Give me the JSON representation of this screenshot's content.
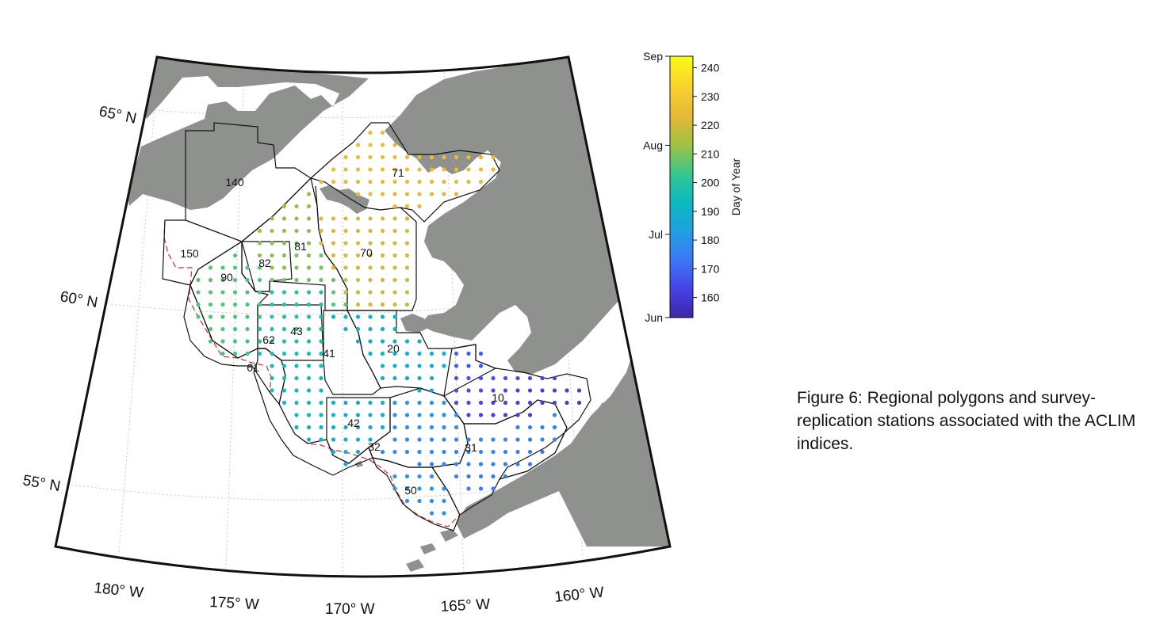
{
  "figure": {
    "caption": "Figure 6: Regional polygons and survey-replication stations associated with the ACLIM indices."
  },
  "map": {
    "lat_labels": [
      "65° N",
      "60° N",
      "55° N"
    ],
    "lon_labels": [
      "180° W",
      "175° W",
      "170° W",
      "165° W",
      "160° W"
    ],
    "regions": [
      {
        "id": "140",
        "label": "140"
      },
      {
        "id": "71",
        "label": "71"
      },
      {
        "id": "70",
        "label": "70"
      },
      {
        "id": "81",
        "label": "81"
      },
      {
        "id": "82",
        "label": "82"
      },
      {
        "id": "150",
        "label": "150"
      },
      {
        "id": "90",
        "label": "90"
      },
      {
        "id": "43",
        "label": "43"
      },
      {
        "id": "62",
        "label": "62"
      },
      {
        "id": "41",
        "label": "41"
      },
      {
        "id": "20",
        "label": "20"
      },
      {
        "id": "61",
        "label": "61"
      },
      {
        "id": "10",
        "label": "10"
      },
      {
        "id": "42",
        "label": "42"
      },
      {
        "id": "32",
        "label": "32"
      },
      {
        "id": "31",
        "label": "31"
      },
      {
        "id": "50",
        "label": "50"
      }
    ],
    "colors": {
      "land": "#8f918e",
      "polygon": "#111111",
      "shelf_break": "#d9282b",
      "frame": "#111111",
      "gridline": "#c7c7c7"
    }
  },
  "colorbar": {
    "title": "Day of Year",
    "min": 153,
    "max": 244,
    "ticks": [
      "160",
      "170",
      "180",
      "190",
      "200",
      "210",
      "220",
      "230",
      "240"
    ],
    "month_labels": [
      "Jun",
      "Jul",
      "Aug",
      "Sep"
    ],
    "colormap": [
      "#3e26a8",
      "#4643e6",
      "#3b78f7",
      "#21a0e0",
      "#0ab9c1",
      "#37c68f",
      "#9ec241",
      "#e6b836",
      "#fad12e",
      "#f9fb15"
    ]
  }
}
